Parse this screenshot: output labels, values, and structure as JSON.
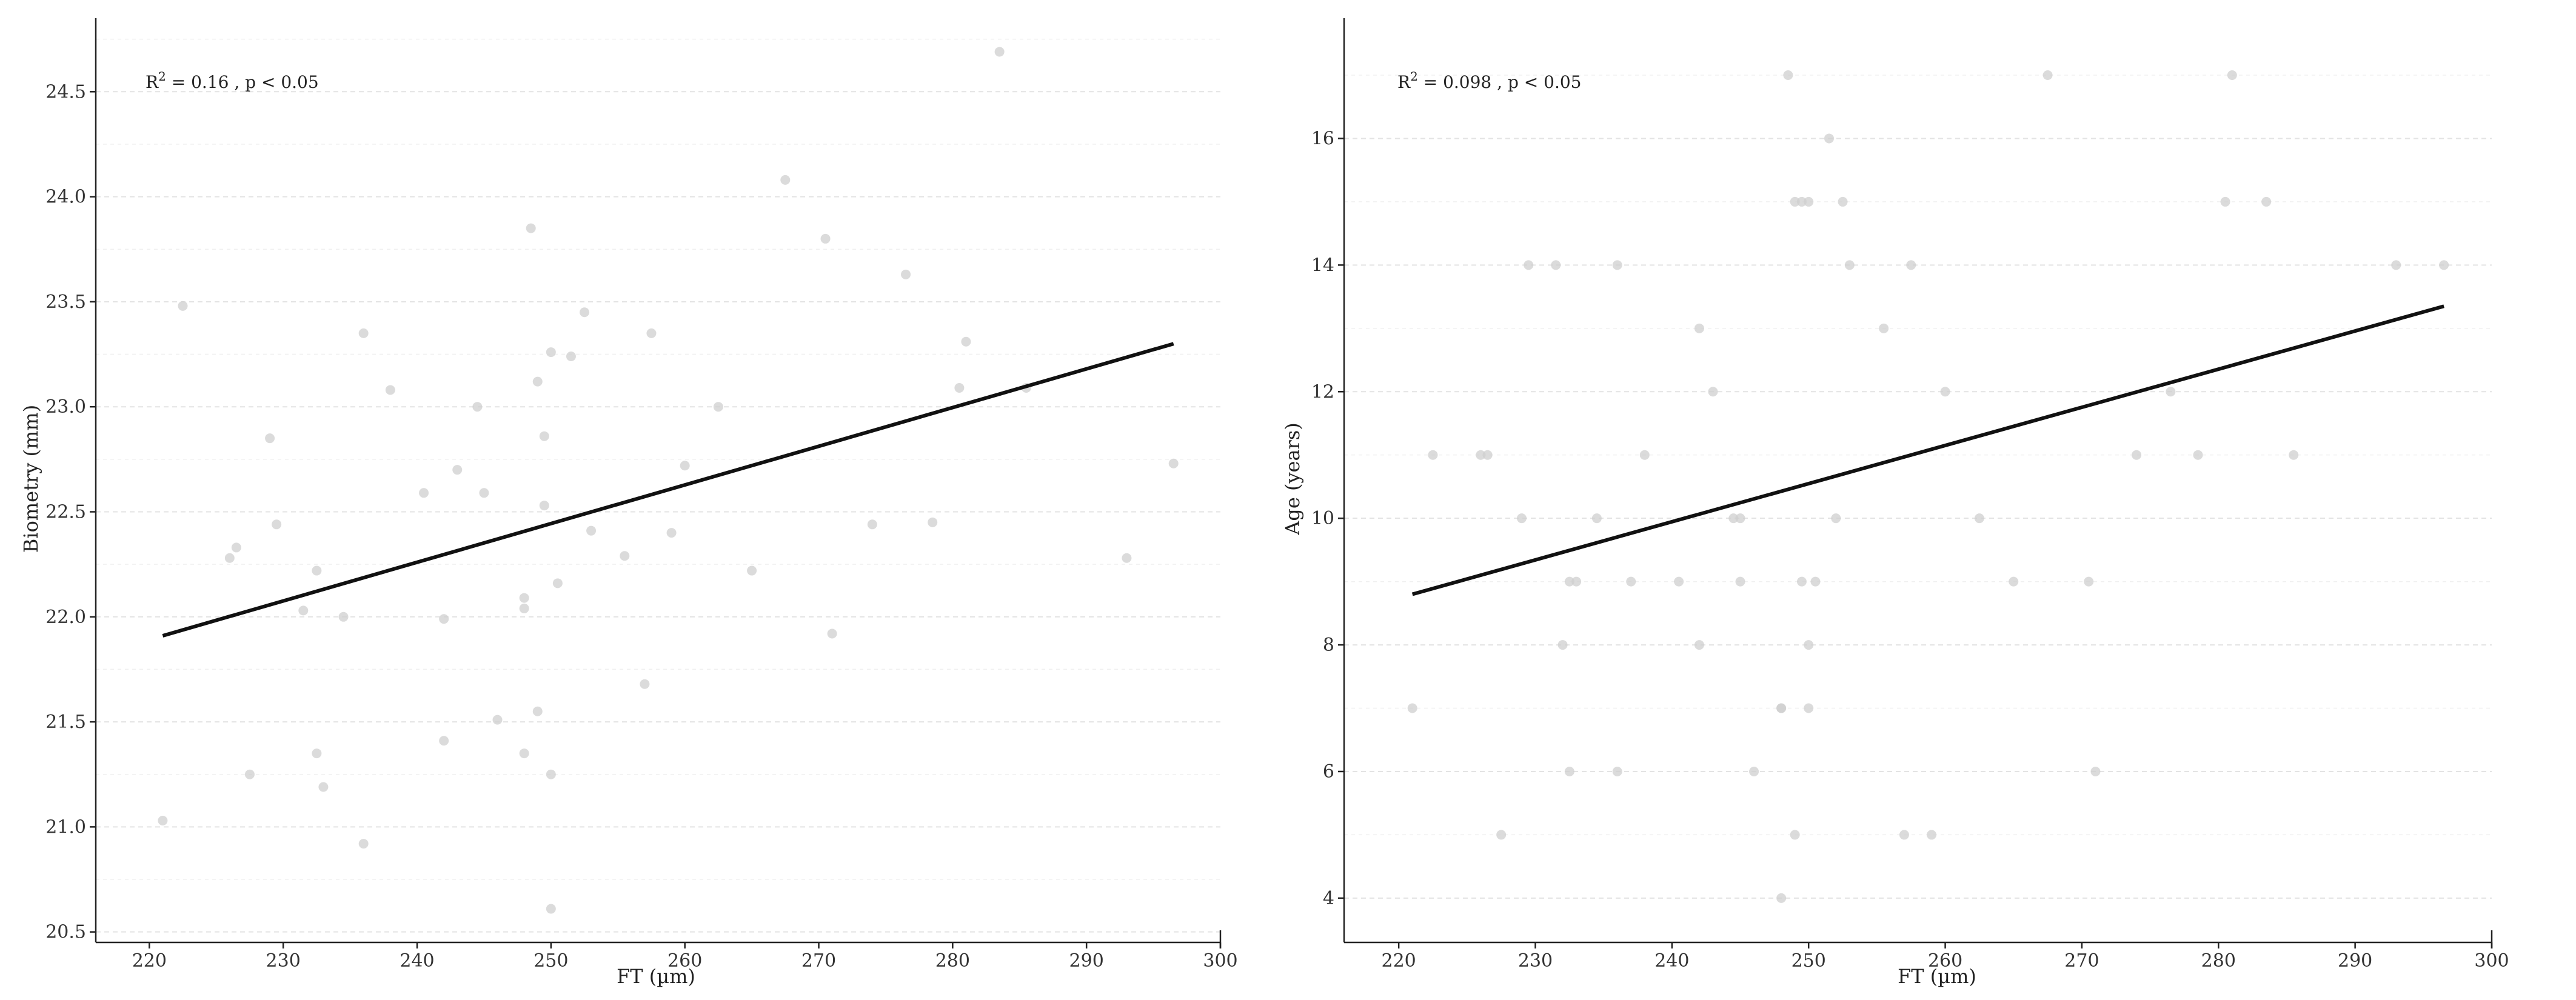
{
  "chart_data": [
    {
      "type": "scatter",
      "xlabel": "FT (µm)",
      "ylabel": "Biometry (mm)",
      "annotation": {
        "r2_label": "R",
        "r2_sup": "2",
        "r2_value": " = 0.16 , p < 0.05"
      },
      "xlim": [
        216,
        300
      ],
      "ylim": [
        20.45,
        24.85
      ],
      "x_ticks": [
        220,
        230,
        240,
        250,
        260,
        270,
        280,
        290,
        300
      ],
      "y_ticks": [
        20.5,
        21.0,
        21.5,
        22.0,
        22.5,
        23.0,
        23.5,
        24.0,
        24.5
      ],
      "y_tick_labels": [
        "20.5",
        "21.0",
        "21.5",
        "22.0",
        "22.5",
        "23.0",
        "23.5",
        "24.0",
        "24.5"
      ],
      "grid": "horizontal dashed",
      "fit_line": {
        "x": [
          221,
          296.5
        ],
        "y": [
          21.91,
          23.3
        ]
      },
      "points": [
        [
          221,
          21.03
        ],
        [
          222.5,
          23.48
        ],
        [
          226,
          22.28
        ],
        [
          226.5,
          22.33
        ],
        [
          227.5,
          21.25
        ],
        [
          229,
          22.85
        ],
        [
          229.5,
          22.44
        ],
        [
          231.5,
          22.03
        ],
        [
          232.5,
          22.22
        ],
        [
          232.5,
          21.35
        ],
        [
          233,
          21.19
        ],
        [
          234.5,
          22.0
        ],
        [
          236,
          23.35
        ],
        [
          236,
          20.92
        ],
        [
          238,
          23.08
        ],
        [
          240.5,
          22.59
        ],
        [
          242,
          21.99
        ],
        [
          242,
          21.41
        ],
        [
          243,
          22.7
        ],
        [
          244.5,
          23.0
        ],
        [
          245,
          22.59
        ],
        [
          246,
          21.51
        ],
        [
          248,
          22.09
        ],
        [
          248,
          22.04
        ],
        [
          248,
          21.35
        ],
        [
          248.5,
          23.85
        ],
        [
          249,
          23.12
        ],
        [
          249,
          21.55
        ],
        [
          249.5,
          22.86
        ],
        [
          249.5,
          22.53
        ],
        [
          250,
          23.26
        ],
        [
          250,
          21.25
        ],
        [
          250,
          20.61
        ],
        [
          250.5,
          22.16
        ],
        [
          251.5,
          23.24
        ],
        [
          252.5,
          23.45
        ],
        [
          253,
          22.41
        ],
        [
          255.5,
          22.29
        ],
        [
          257,
          21.68
        ],
        [
          257.5,
          23.35
        ],
        [
          259,
          22.4
        ],
        [
          260,
          22.72
        ],
        [
          262.5,
          23.0
        ],
        [
          265,
          22.22
        ],
        [
          267.5,
          24.08
        ],
        [
          270.5,
          23.8
        ],
        [
          271,
          21.92
        ],
        [
          274,
          22.44
        ],
        [
          276.5,
          23.63
        ],
        [
          278.5,
          22.45
        ],
        [
          280.5,
          23.09
        ],
        [
          281,
          23.31
        ],
        [
          283.5,
          24.69
        ],
        [
          285.5,
          23.09
        ],
        [
          293,
          22.28
        ],
        [
          296.5,
          22.73
        ]
      ]
    },
    {
      "type": "scatter",
      "xlabel": "FT (µm)",
      "ylabel": "Age (years)",
      "annotation": {
        "r2_label": "R",
        "r2_sup": "2",
        "r2_value": " = 0.098 , p < 0.05"
      },
      "xlim": [
        216,
        300
      ],
      "ylim": [
        3.3,
        17.9
      ],
      "x_ticks": [
        220,
        230,
        240,
        250,
        260,
        270,
        280,
        290,
        300
      ],
      "y_ticks": [
        4,
        6,
        8,
        10,
        12,
        14,
        16
      ],
      "y_tick_labels": [
        "4",
        "6",
        "8",
        "10",
        "12",
        "14",
        "16"
      ],
      "grid": "horizontal dashed",
      "fit_line": {
        "x": [
          221,
          296.5
        ],
        "y": [
          8.8,
          13.35
        ]
      },
      "points": [
        [
          221,
          7
        ],
        [
          222.5,
          11
        ],
        [
          226,
          11
        ],
        [
          226.5,
          11
        ],
        [
          227.5,
          5
        ],
        [
          229,
          10
        ],
        [
          229.5,
          14
        ],
        [
          231.5,
          14
        ],
        [
          232,
          8
        ],
        [
          232.5,
          9
        ],
        [
          232.5,
          6
        ],
        [
          233,
          9
        ],
        [
          234.5,
          10
        ],
        [
          236,
          14
        ],
        [
          236,
          6
        ],
        [
          237,
          9
        ],
        [
          238,
          11
        ],
        [
          240.5,
          9
        ],
        [
          242,
          13
        ],
        [
          242,
          8
        ],
        [
          243,
          12
        ],
        [
          244.5,
          10
        ],
        [
          245,
          10
        ],
        [
          245,
          9
        ],
        [
          246,
          6
        ],
        [
          248,
          7
        ],
        [
          248,
          7
        ],
        [
          248,
          4
        ],
        [
          248.5,
          17
        ],
        [
          249,
          15
        ],
        [
          249,
          5
        ],
        [
          249.5,
          15
        ],
        [
          249.5,
          9
        ],
        [
          250,
          15
        ],
        [
          250,
          8
        ],
        [
          250,
          7
        ],
        [
          250.5,
          9
        ],
        [
          251.5,
          16
        ],
        [
          252,
          10
        ],
        [
          252.5,
          15
        ],
        [
          253,
          14
        ],
        [
          255.5,
          13
        ],
        [
          257,
          5
        ],
        [
          257.5,
          14
        ],
        [
          259,
          5
        ],
        [
          260,
          12
        ],
        [
          262.5,
          10
        ],
        [
          265,
          9
        ],
        [
          267.5,
          17
        ],
        [
          270.5,
          9
        ],
        [
          271,
          6
        ],
        [
          274,
          11
        ],
        [
          276.5,
          12
        ],
        [
          278.5,
          11
        ],
        [
          280.5,
          15
        ],
        [
          281,
          17
        ],
        [
          283.5,
          15
        ],
        [
          285.5,
          11
        ],
        [
          293,
          14
        ],
        [
          296.5,
          14
        ]
      ]
    }
  ]
}
